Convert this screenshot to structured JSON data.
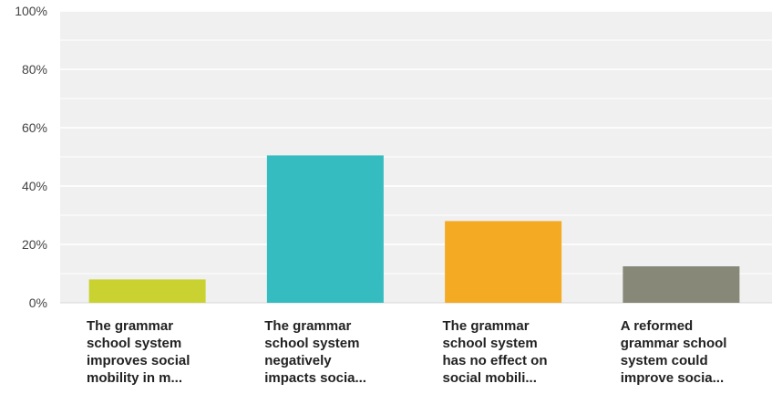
{
  "chart_data": {
    "type": "bar",
    "categories": [
      [
        "The grammar",
        "school system",
        "improves social",
        "mobility in m..."
      ],
      [
        "The grammar",
        "school system",
        "negatively",
        "impacts socia..."
      ],
      [
        "The grammar",
        "school system",
        "has no effect on",
        "social mobili..."
      ],
      [
        "A reformed",
        "grammar school",
        "system could",
        "improve socia..."
      ]
    ],
    "values": [
      8,
      50.5,
      28,
      12.5
    ],
    "colors": [
      "#c9d230",
      "#34bcc0",
      "#f4aa22",
      "#878878"
    ],
    "yticks": [
      "0%",
      "20%",
      "40%",
      "60%",
      "80%",
      "100%"
    ],
    "ylim": [
      0,
      100
    ],
    "grid": true,
    "background": "#f0f0f0",
    "gridline_color": "#ffffff"
  }
}
